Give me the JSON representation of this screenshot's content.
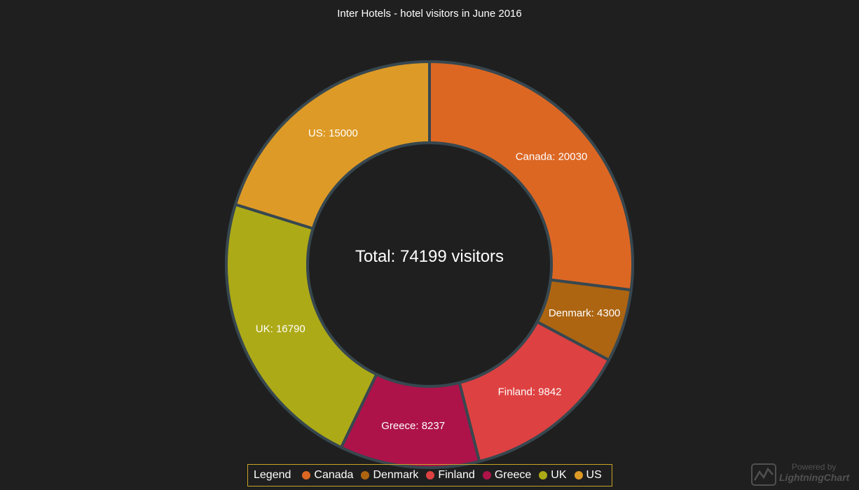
{
  "chart_data": {
    "type": "pie",
    "variant": "donut",
    "title": "Inter Hotels - hotel visitors in June 2016",
    "center_text": "Total: 74199 visitors",
    "slices": [
      {
        "name": "Canada",
        "value": 20030,
        "color": "#dc6723",
        "label": "Canada: 20030"
      },
      {
        "name": "Denmark",
        "value": 4300,
        "color": "#ad6512",
        "label": "Denmark: 4300"
      },
      {
        "name": "Finland",
        "value": 9842,
        "color": "#de4141",
        "label": "Finland: 9842"
      },
      {
        "name": "Greece",
        "value": 8237,
        "color": "#ad1349",
        "label": "Greece: 8237"
      },
      {
        "name": "UK",
        "value": 16790,
        "color": "#adaa17",
        "label": "UK: 16790"
      },
      {
        "name": "US",
        "value": 15000,
        "color": "#dd9a26",
        "label": "US: 15000"
      }
    ],
    "legend_placement": "bottom",
    "slice_border_color": "#37474f"
  },
  "legend": {
    "title": "Legend",
    "border_color": "#c9a227"
  },
  "watermark": {
    "line1": "Powered by",
    "line2": "LightningChart"
  },
  "background_color": "#1f1f1f"
}
